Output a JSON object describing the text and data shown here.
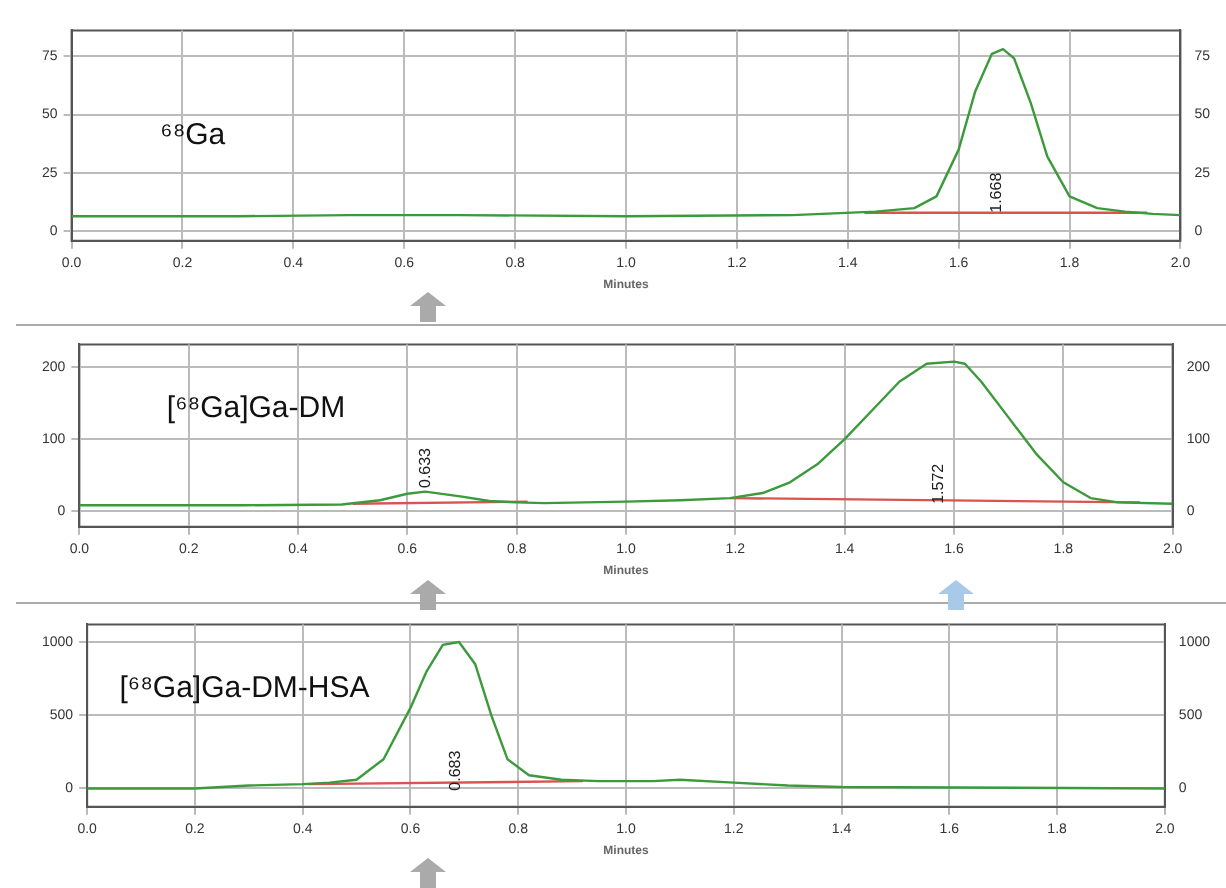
{
  "chart_data": [
    {
      "type": "line",
      "xlabel": "Minutes",
      "annotations": [
        "⁶⁸Ga",
        {
          "text": "1.668",
          "x": 1.668,
          "y": 8
        }
      ],
      "xlim": [
        0,
        2
      ],
      "xticks": [
        {
          "value": 0,
          "label": "0.0"
        },
        {
          "value": 0.2,
          "label": "0.2"
        },
        {
          "value": 0.4,
          "label": "0.4"
        },
        {
          "value": 0.6,
          "label": "0.6"
        },
        {
          "value": 0.8,
          "label": "0.8"
        },
        {
          "value": 1,
          "label": "1.0"
        },
        {
          "value": 1.2,
          "label": "1.2"
        },
        {
          "value": 1.4,
          "label": "1.4"
        },
        {
          "value": 1.6,
          "label": "1.6"
        },
        {
          "value": 1.8,
          "label": "1.8"
        },
        {
          "value": 2,
          "label": "2.0"
        }
      ],
      "ylim": [
        -4,
        86
      ],
      "yticks": [
        0,
        25,
        50,
        75
      ],
      "y2lim": [
        -4,
        86
      ],
      "y2ticks": [
        0,
        25,
        50,
        75
      ],
      "grid": true,
      "series": [
        {
          "type": "line",
          "color": "#3c9a3c",
          "x": [
            0,
            0.3,
            0.5,
            0.7,
            1.0,
            1.3,
            1.45,
            1.52,
            1.56,
            1.6,
            1.63,
            1.66,
            1.68,
            1.7,
            1.73,
            1.76,
            1.8,
            1.85,
            1.9,
            1.95,
            2.0
          ],
          "values": [
            6.5,
            6.5,
            7,
            7,
            6.5,
            7,
            8.5,
            10,
            15,
            35,
            60,
            76,
            78,
            74,
            55,
            32,
            15,
            10,
            8.5,
            7.5,
            7
          ]
        },
        {
          "type": "line",
          "color": "#d9534f",
          "x": [
            1.43,
            1.94
          ],
          "values": [
            8,
            8
          ]
        }
      ]
    },
    {
      "type": "line",
      "xlabel": "Minutes",
      "annotations": [
        "[⁶⁸Ga]Ga-DM",
        {
          "text": "0.633",
          "x": 0.633,
          "y": 32
        },
        {
          "text": "1.572",
          "x": 1.572,
          "y": 10
        }
      ],
      "xlim": [
        0,
        2
      ],
      "xticks": [
        {
          "value": 0,
          "label": "0.0"
        },
        {
          "value": 0.2,
          "label": "0.2"
        },
        {
          "value": 0.4,
          "label": "0.4"
        },
        {
          "value": 0.6,
          "label": "0.6"
        },
        {
          "value": 0.8,
          "label": "0.8"
        },
        {
          "value": 1,
          "label": "1.0"
        },
        {
          "value": 1.2,
          "label": "1.2"
        },
        {
          "value": 1.4,
          "label": "1.4"
        },
        {
          "value": 1.6,
          "label": "1.6"
        },
        {
          "value": 1.8,
          "label": "1.8"
        },
        {
          "value": 2,
          "label": "2.0"
        }
      ],
      "ylim": [
        -22,
        232
      ],
      "yticks": [
        0,
        100,
        200
      ],
      "y2lim": [
        -22,
        232
      ],
      "y2ticks": [
        0,
        100,
        200
      ],
      "grid": true,
      "series": [
        {
          "type": "line",
          "color": "#3c9a3c",
          "x": [
            0,
            0.3,
            0.48,
            0.55,
            0.6,
            0.633,
            0.7,
            0.75,
            0.8,
            0.85,
            1.0,
            1.1,
            1.19,
            1.25,
            1.3,
            1.35,
            1.4,
            1.45,
            1.5,
            1.55,
            1.6,
            1.62,
            1.65,
            1.7,
            1.75,
            1.8,
            1.85,
            1.9,
            2.0
          ],
          "values": [
            8,
            8,
            9,
            15,
            24,
            27,
            20,
            14,
            12,
            11,
            13,
            15,
            18,
            25,
            40,
            65,
            100,
            140,
            180,
            205,
            208,
            205,
            180,
            130,
            80,
            40,
            18,
            12,
            10
          ]
        },
        {
          "type": "line",
          "color": "#d9534f",
          "x": [
            0.5,
            0.82
          ],
          "values": [
            10,
            13
          ]
        },
        {
          "type": "line",
          "color": "#d9534f",
          "x": [
            1.19,
            1.94
          ],
          "values": [
            18,
            12
          ]
        }
      ]
    },
    {
      "type": "line",
      "xlabel": "Minutes",
      "annotations": [
        "[⁶⁸Ga]Ga-DM-HSA",
        {
          "text": "0.683",
          "x": 0.683,
          "y": -15
        }
      ],
      "xlim": [
        0,
        2
      ],
      "xticks": [
        {
          "value": 0,
          "label": "0.0"
        },
        {
          "value": 0.2,
          "label": "0.2"
        },
        {
          "value": 0.4,
          "label": "0.4"
        },
        {
          "value": 0.6,
          "label": "0.6"
        },
        {
          "value": 0.8,
          "label": "0.8"
        },
        {
          "value": 1,
          "label": "1.0"
        },
        {
          "value": 1.2,
          "label": "1.2"
        },
        {
          "value": 1.4,
          "label": "1.4"
        },
        {
          "value": 1.6,
          "label": "1.6"
        },
        {
          "value": 1.8,
          "label": "1.8"
        },
        {
          "value": 2,
          "label": "2.0"
        }
      ],
      "ylim": [
        -125,
        1120
      ],
      "yticks": [
        0,
        500,
        1000
      ],
      "y2lim": [
        -125,
        1120
      ],
      "y2ticks": [
        0,
        500,
        1000
      ],
      "grid": true,
      "series": [
        {
          "type": "line",
          "color": "#3c9a3c",
          "x": [
            0,
            0.2,
            0.3,
            0.4,
            0.45,
            0.5,
            0.55,
            0.6,
            0.63,
            0.66,
            0.69,
            0.72,
            0.75,
            0.78,
            0.82,
            0.88,
            0.95,
            1.05,
            1.1,
            1.2,
            1.3,
            1.4,
            2.0
          ],
          "values": [
            0,
            0,
            20,
            30,
            40,
            60,
            200,
            550,
            800,
            980,
            1000,
            850,
            500,
            200,
            90,
            60,
            50,
            50,
            60,
            40,
            20,
            10,
            0
          ]
        },
        {
          "type": "line",
          "color": "#d9534f",
          "x": [
            0.41,
            0.92
          ],
          "values": [
            30,
            50
          ]
        }
      ]
    }
  ]
}
